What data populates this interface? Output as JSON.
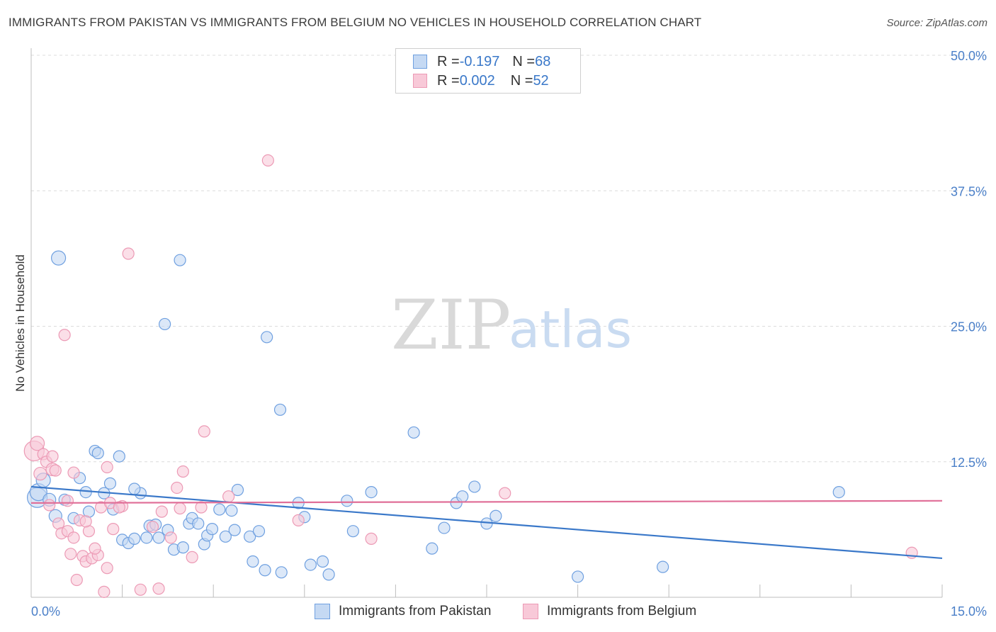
{
  "title": "IMMIGRANTS FROM PAKISTAN VS IMMIGRANTS FROM BELGIUM NO VEHICLES IN HOUSEHOLD CORRELATION CHART",
  "source": "Source: ZipAtlas.com",
  "watermark": {
    "zip": "ZIP",
    "atlas": "atlas"
  },
  "legend": {
    "pakistan": {
      "r_label": "R = ",
      "r_value": "-0.197",
      "n_label": "N = ",
      "n_value": "68"
    },
    "belgium": {
      "r_label": "R = ",
      "r_value": "0.002",
      "n_label": "N = ",
      "n_value": "52"
    }
  },
  "chart_data": {
    "type": "scatter",
    "title": "IMMIGRANTS FROM PAKISTAN VS IMMIGRANTS FROM BELGIUM NO VEHICLES IN HOUSEHOLD CORRELATION CHART",
    "xlabel": "",
    "ylabel": "No Vehicles in Household",
    "xlim": [
      0,
      15
    ],
    "ylim": [
      0,
      50
    ],
    "x_tick_labels": [
      "0.0%",
      "15.0%"
    ],
    "y_ticks": [
      12.5,
      25.0,
      37.5,
      50.0
    ],
    "y_tick_labels": [
      "12.5%",
      "25.0%",
      "37.5%",
      "50.0%"
    ],
    "grid": true,
    "legend_position": "bottom",
    "series": [
      {
        "name": "Immigrants from Pakistan",
        "color": "#6fa0e0",
        "fill": "#c5d9f3",
        "trend": {
          "x": [
            0,
            15
          ],
          "y": [
            10.2,
            3.6
          ],
          "color": "#3a78c9"
        },
        "points": [
          [
            0.1,
            9.2,
            14
          ],
          [
            0.12,
            9.7,
            12
          ],
          [
            0.2,
            10.8,
            10
          ],
          [
            0.3,
            9.0,
            9
          ],
          [
            0.4,
            7.5,
            9
          ],
          [
            0.45,
            31.3,
            10
          ],
          [
            0.55,
            9.0,
            8
          ],
          [
            0.7,
            7.3,
            8
          ],
          [
            0.8,
            11.0,
            8
          ],
          [
            0.9,
            9.7,
            8
          ],
          [
            0.95,
            7.9,
            8
          ],
          [
            1.05,
            13.5,
            8
          ],
          [
            1.1,
            13.3,
            8
          ],
          [
            1.2,
            9.6,
            8
          ],
          [
            1.3,
            10.5,
            8
          ],
          [
            1.35,
            8.1,
            8
          ],
          [
            1.45,
            13.0,
            8
          ],
          [
            1.5,
            5.3,
            8
          ],
          [
            1.6,
            5.0,
            8
          ],
          [
            1.7,
            5.4,
            8
          ],
          [
            1.8,
            9.6,
            8
          ],
          [
            1.9,
            5.5,
            8
          ],
          [
            1.95,
            6.6,
            8
          ],
          [
            2.05,
            6.7,
            8
          ],
          [
            2.1,
            5.5,
            8
          ],
          [
            2.2,
            25.2,
            8
          ],
          [
            2.25,
            6.2,
            8
          ],
          [
            2.35,
            4.4,
            8
          ],
          [
            2.45,
            31.1,
            8
          ],
          [
            2.5,
            4.6,
            8
          ],
          [
            2.6,
            6.8,
            8
          ],
          [
            2.65,
            7.3,
            8
          ],
          [
            2.75,
            6.8,
            8
          ],
          [
            2.85,
            4.9,
            8
          ],
          [
            2.9,
            5.7,
            8
          ],
          [
            2.98,
            6.3,
            8
          ],
          [
            3.1,
            8.1,
            8
          ],
          [
            3.2,
            5.6,
            8
          ],
          [
            3.3,
            8.0,
            8
          ],
          [
            3.35,
            6.2,
            8
          ],
          [
            3.4,
            9.9,
            8
          ],
          [
            3.6,
            5.6,
            8
          ],
          [
            3.65,
            3.3,
            8
          ],
          [
            3.75,
            6.1,
            8
          ],
          [
            3.85,
            2.5,
            8
          ],
          [
            3.88,
            24.0,
            8
          ],
          [
            4.1,
            17.3,
            8
          ],
          [
            4.12,
            2.3,
            8
          ],
          [
            4.4,
            8.7,
            8
          ],
          [
            4.5,
            7.4,
            8
          ],
          [
            4.6,
            3.0,
            8
          ],
          [
            4.8,
            3.3,
            8
          ],
          [
            4.9,
            2.1,
            8
          ],
          [
            5.2,
            8.9,
            8
          ],
          [
            5.3,
            6.1,
            8
          ],
          [
            5.6,
            9.7,
            8
          ],
          [
            6.3,
            15.2,
            8
          ],
          [
            6.6,
            4.5,
            8
          ],
          [
            6.8,
            6.4,
            8
          ],
          [
            7.0,
            8.7,
            8
          ],
          [
            7.1,
            9.3,
            8
          ],
          [
            7.3,
            10.2,
            8
          ],
          [
            7.5,
            6.8,
            8
          ],
          [
            7.65,
            7.5,
            8
          ],
          [
            9.0,
            1.9,
            8
          ],
          [
            10.4,
            2.8,
            8
          ],
          [
            13.3,
            9.7,
            8
          ],
          [
            1.7,
            10.0,
            8
          ]
        ]
      },
      {
        "name": "Immigrants from Belgium",
        "color": "#ec9ab5",
        "fill": "#f8c9d8",
        "trend": {
          "x": [
            0,
            15
          ],
          "y": [
            8.7,
            8.9
          ],
          "color": "#e06f98"
        },
        "points": [
          [
            0.05,
            13.5,
            14
          ],
          [
            0.1,
            14.2,
            10
          ],
          [
            0.15,
            11.4,
            9
          ],
          [
            0.2,
            13.2,
            8
          ],
          [
            0.25,
            12.5,
            8
          ],
          [
            0.3,
            8.5,
            8
          ],
          [
            0.35,
            11.8,
            9
          ],
          [
            0.4,
            11.7,
            8
          ],
          [
            0.45,
            6.8,
            8
          ],
          [
            0.5,
            5.9,
            8
          ],
          [
            0.55,
            24.2,
            8
          ],
          [
            0.6,
            6.1,
            8
          ],
          [
            0.65,
            4.0,
            8
          ],
          [
            0.7,
            5.5,
            8
          ],
          [
            0.75,
            1.6,
            8
          ],
          [
            0.8,
            7.1,
            8
          ],
          [
            0.85,
            3.8,
            8
          ],
          [
            0.9,
            3.3,
            8
          ],
          [
            0.95,
            6.1,
            8
          ],
          [
            1.0,
            3.6,
            8
          ],
          [
            1.1,
            3.9,
            8
          ],
          [
            1.15,
            8.3,
            8
          ],
          [
            1.2,
            0.5,
            8
          ],
          [
            1.25,
            12.0,
            8
          ],
          [
            1.3,
            8.7,
            8
          ],
          [
            1.35,
            6.3,
            8
          ],
          [
            1.5,
            8.4,
            8
          ],
          [
            1.6,
            31.7,
            8
          ],
          [
            1.8,
            0.7,
            8
          ],
          [
            2.1,
            0.8,
            8
          ],
          [
            2.15,
            7.9,
            8
          ],
          [
            2.3,
            5.5,
            8
          ],
          [
            2.4,
            10.1,
            8
          ],
          [
            2.45,
            8.2,
            8
          ],
          [
            2.5,
            11.6,
            8
          ],
          [
            2.65,
            3.7,
            8
          ],
          [
            2.8,
            8.3,
            8
          ],
          [
            2.85,
            15.3,
            8
          ],
          [
            3.25,
            9.3,
            8
          ],
          [
            3.9,
            40.3,
            8
          ],
          [
            4.4,
            7.1,
            8
          ],
          [
            5.6,
            5.4,
            8
          ],
          [
            7.8,
            9.6,
            8
          ],
          [
            14.5,
            4.1,
            8
          ],
          [
            0.6,
            8.9,
            8
          ],
          [
            0.7,
            11.5,
            8
          ],
          [
            1.05,
            4.5,
            8
          ],
          [
            1.25,
            2.7,
            8
          ],
          [
            1.45,
            8.3,
            8
          ],
          [
            0.9,
            7.0,
            8
          ],
          [
            0.35,
            13.0,
            8
          ],
          [
            2.0,
            6.5,
            8
          ]
        ]
      }
    ]
  }
}
